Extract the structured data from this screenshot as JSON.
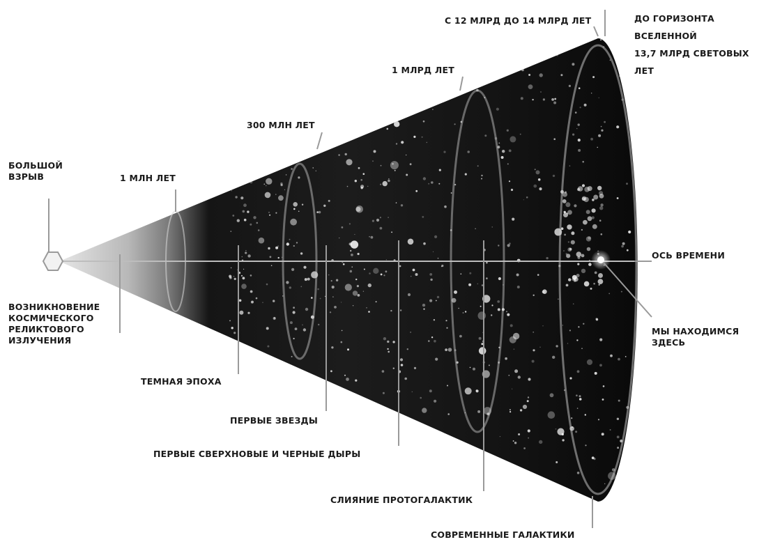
{
  "labels": {
    "big_bang": "БОЛЬШОЙ\nВЗРЫВ",
    "one_million": "1 МЛН ЛЕТ",
    "three_hundred_million": "300 МЛН ЛЕТ",
    "one_billion": "1 МЛРД ЛЕТ",
    "twelve_to_fourteen": "С 12 МЛРД ДО 14 МЛРД ЛЕТ",
    "horizon": "ДО ГОРИЗОНТА\nВСЕЛЕННОЙ\n13,7 МЛРД СВЕТОВЫХ\nЛЕТ",
    "time_axis": "ОСЬ ВРЕМЕНИ",
    "we_are_here": "МЫ НАХОДИМСЯ\nЗДЕСЬ",
    "cmb": "ВОЗНИКНОВЕНИЕ\nКОСМИЧЕСКОГО\nРЕЛИКТОВОГО\nИЗЛУЧЕНИЯ",
    "dark_age": "ТЕМНАЯ ЭПОХА",
    "first_stars": "ПЕРВЫЕ ЗВЕЗДЫ",
    "first_supernovae": "ПЕРВЫЕ СВЕРХНОВЫЕ И ЧЕРНЫЕ ДЫРЫ",
    "protogalaxy_merger": "СЛИЯНИЕ ПРОТОГАЛАКТИК",
    "modern_galaxies": "СОВРЕМЕННЫЕ ГАЛАКТИКИ"
  },
  "colors": {
    "background": "#ffffff",
    "cone_dark": "#0b0b0b",
    "cone_light": "#e8e8e8",
    "text": "#1a1a1a",
    "leader": "#9a9a9a"
  }
}
